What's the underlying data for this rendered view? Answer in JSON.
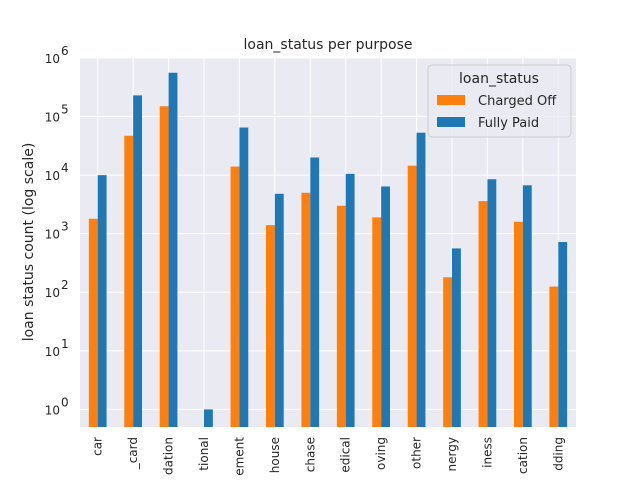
{
  "chart_data": {
    "type": "bar",
    "title": "loan_status per purpose",
    "xlabel": "",
    "ylabel": "loan status count (log scale)",
    "yscale": "log",
    "ylim": [
      0.5,
      1000000
    ],
    "yticks": [
      1,
      10,
      100,
      1000,
      10000,
      100000,
      1000000
    ],
    "ytick_labels": [
      "10",
      "10",
      "10",
      "10",
      "10",
      "10",
      "10"
    ],
    "ytick_exponents": [
      "0",
      "1",
      "2",
      "3",
      "4",
      "5",
      "6"
    ],
    "grid": true,
    "legend": {
      "title": "loan_status",
      "placement": "top-right"
    },
    "categories": [
      "car",
      "_card",
      "dation",
      "tional",
      "ement",
      "house",
      "chase",
      "edical",
      "oving",
      "other",
      "nergy",
      "iness",
      "cation",
      "dding"
    ],
    "series": [
      {
        "name": "Charged Off",
        "color": "#ff7f0e",
        "values": [
          1800,
          47000,
          150000,
          null,
          14000,
          1400,
          5000,
          3000,
          1900,
          14500,
          180,
          3600,
          1600,
          125
        ]
      },
      {
        "name": "Fully Paid",
        "color": "#1f77b4",
        "values": [
          10000,
          230000,
          560000,
          1,
          65000,
          4800,
          20000,
          10500,
          6400,
          53000,
          560,
          8500,
          6700,
          720
        ]
      }
    ]
  }
}
